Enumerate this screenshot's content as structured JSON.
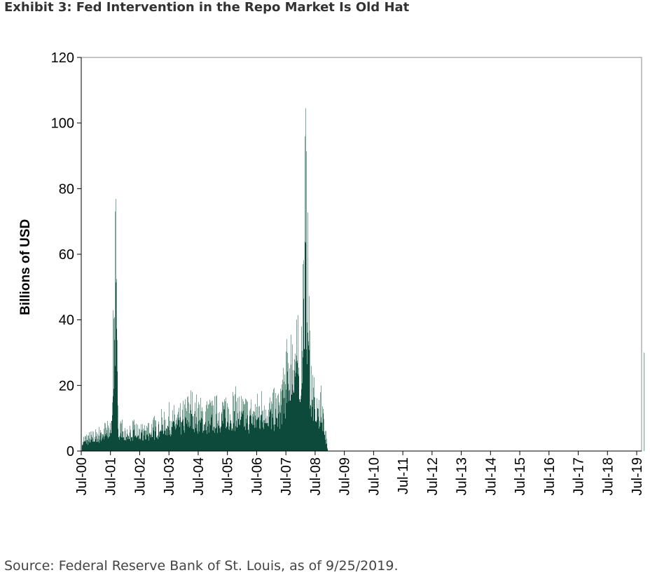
{
  "exhibit_title": "Exhibit 3: Fed Intervention in the Repo Market Is Old Hat",
  "source_note": "Source: Federal Reserve Bank of St. Louis, as of 9/25/2019.",
  "colors": {
    "bar_dark": "#0e4a3b",
    "bar_light": "#7fa798",
    "axis": "#000000",
    "frame": "#888888"
  },
  "chart_data": {
    "type": "bar",
    "ylabel": "Billions of USD",
    "xlabel": "",
    "ylim": [
      0,
      120
    ],
    "yticks": [
      0,
      20,
      40,
      60,
      80,
      100,
      120
    ],
    "x_ticks": [
      "Jul-00",
      "Jul-01",
      "Jul-02",
      "Jul-03",
      "Jul-04",
      "Jul-05",
      "Jul-06",
      "Jul-07",
      "Jul-08",
      "Jul-09",
      "Jul-10",
      "Jul-11",
      "Jul-12",
      "Jul-13",
      "Jul-14",
      "Jul-15",
      "Jul-16",
      "Jul-17",
      "Jul-18",
      "Jul-19"
    ],
    "x_range": [
      "2000-07",
      "2019-09"
    ],
    "series": [
      {
        "values": [
          [
            "2000-07",
            5
          ],
          [
            "2000-10",
            6
          ],
          [
            "2001-01",
            7
          ],
          [
            "2001-04",
            9
          ],
          [
            "2001-07",
            10
          ],
          [
            "2001-09",
            81
          ],
          [
            "2001-10",
            12
          ],
          [
            "2002-01",
            9
          ],
          [
            "2002-04",
            10
          ],
          [
            "2002-07",
            8
          ],
          [
            "2002-10",
            10
          ],
          [
            "2003-01",
            11
          ],
          [
            "2003-04",
            13
          ],
          [
            "2003-07",
            15
          ],
          [
            "2003-10",
            14
          ],
          [
            "2004-01",
            16
          ],
          [
            "2004-04",
            20
          ],
          [
            "2004-07",
            17
          ],
          [
            "2004-10",
            16
          ],
          [
            "2005-01",
            17
          ],
          [
            "2005-04",
            18
          ],
          [
            "2005-07",
            19
          ],
          [
            "2005-10",
            20
          ],
          [
            "2006-01",
            18
          ],
          [
            "2006-04",
            17
          ],
          [
            "2006-07",
            18
          ],
          [
            "2006-10",
            21
          ],
          [
            "2007-01",
            19
          ],
          [
            "2007-04",
            20
          ],
          [
            "2007-08",
            38
          ],
          [
            "2007-10",
            45
          ],
          [
            "2008-01",
            40
          ],
          [
            "2008-03",
            105
          ],
          [
            "2008-05",
            33
          ],
          [
            "2008-07",
            20
          ],
          [
            "2008-10",
            20
          ],
          [
            "2008-12",
            0
          ],
          [
            "2019-09",
            30
          ]
        ]
      }
    ]
  }
}
